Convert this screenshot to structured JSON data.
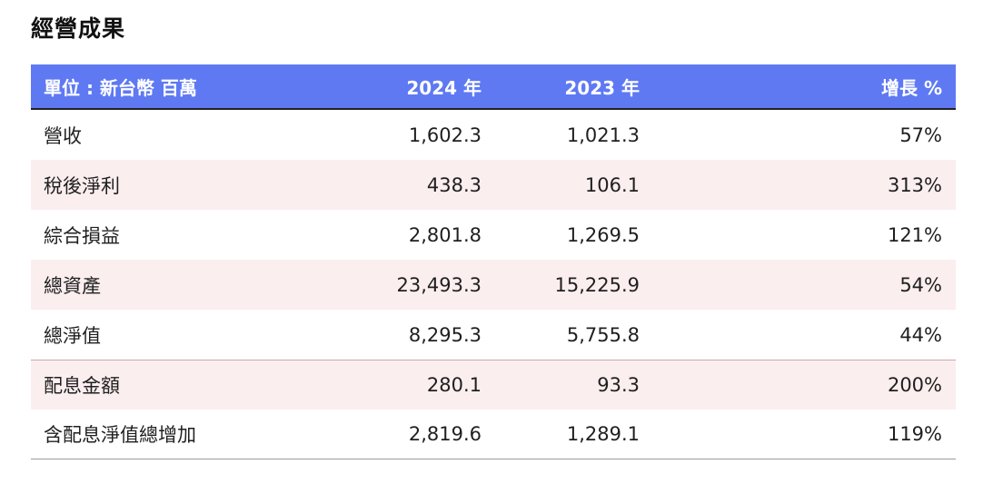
{
  "title": "經營成果",
  "headers": [
    "單位 : 新台幣 百萬",
    "2024 年",
    "2023 年",
    "增長 %"
  ],
  "rows": [
    {
      "label": "營收",
      "y2024": "1,602.3",
      "y2023": "1,021.3",
      "growth": "57%"
    },
    {
      "label": "稅後淨利",
      "y2024": "438.3",
      "y2023": "106.1",
      "growth": "313%"
    },
    {
      "label": "綜合損益",
      "y2024": "2,801.8",
      "y2023": "1,269.5",
      "growth": "121%"
    },
    {
      "label": "總資產",
      "y2024": "23,493.3",
      "y2023": "15,225.9",
      "growth": "54%"
    },
    {
      "label": "總淨值",
      "y2024": "8,295.3",
      "y2023": "5,755.8",
      "growth": "44%"
    },
    {
      "label": "配息金額",
      "y2024": "280.1",
      "y2023": "93.3",
      "growth": "200%"
    },
    {
      "label": "含配息淨值總增加",
      "y2024": "2,819.6",
      "y2023": "1,289.1",
      "growth": "119%"
    }
  ],
  "colors": {
    "header_bg": "#5f79f3",
    "shade_bg": "#fbeeef"
  }
}
